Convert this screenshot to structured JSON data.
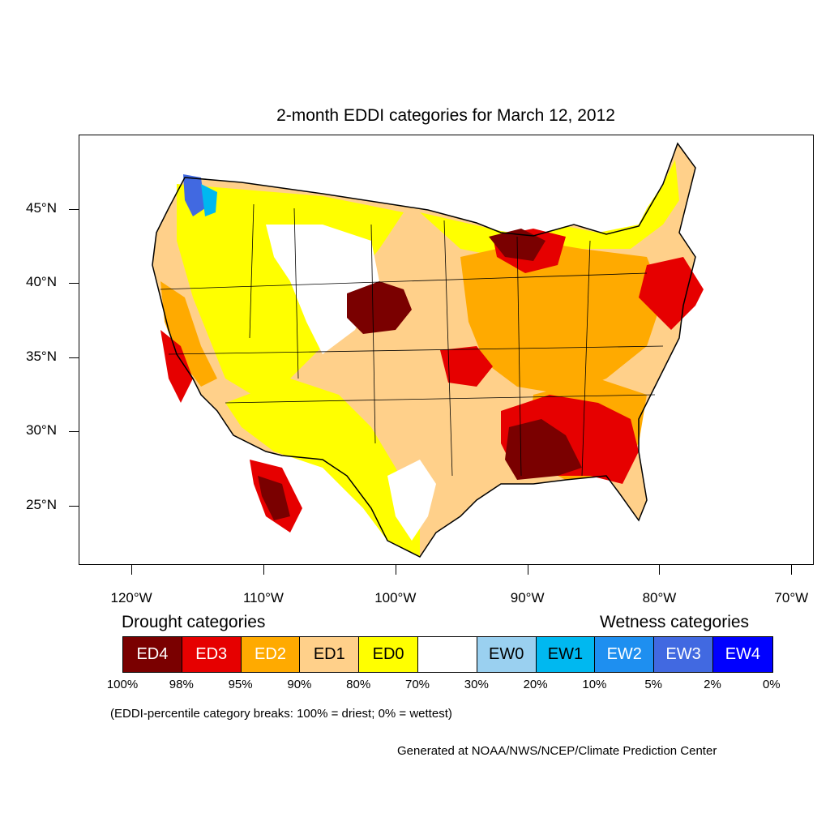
{
  "title": "2-month EDDI categories for March 12, 2012",
  "map": {
    "extent": {
      "lon_min": -124,
      "lon_max": -68.3,
      "lat_min": 21,
      "lat_max": 50
    },
    "lat_labels": [
      {
        "text": "45°N",
        "lat": 45
      },
      {
        "text": "40°N",
        "lat": 40
      },
      {
        "text": "35°N",
        "lat": 35
      },
      {
        "text": "30°N",
        "lat": 30
      },
      {
        "text": "25°N",
        "lat": 25
      }
    ],
    "lon_labels": [
      {
        "text": "120°W",
        "lon": -120
      },
      {
        "text": "110°W",
        "lon": -110
      },
      {
        "text": "100°W",
        "lon": -100
      },
      {
        "text": "90°W",
        "lon": -90
      },
      {
        "text": "80°W",
        "lon": -80
      },
      {
        "text": "70°W",
        "lon": -70
      }
    ]
  },
  "legend": {
    "drought_heading": "Drought categories",
    "wetness_heading": "Wetness categories",
    "categories": [
      {
        "label": "ED4",
        "color": "#7a0000",
        "text_color": "#ffffff"
      },
      {
        "label": "ED3",
        "color": "#e60000",
        "text_color": "#ffffff"
      },
      {
        "label": "ED2",
        "color": "#ffaa00",
        "text_color": "#ffffff"
      },
      {
        "label": "ED1",
        "color": "#ffd08a",
        "text_color": "#000000"
      },
      {
        "label": "ED0",
        "color": "#ffff00",
        "text_color": "#000000"
      },
      {
        "label": "",
        "color": "#ffffff",
        "text_color": "#000000"
      },
      {
        "label": "EW0",
        "color": "#9ad0f0",
        "text_color": "#000000"
      },
      {
        "label": "EW1",
        "color": "#00b8f0",
        "text_color": "#000000"
      },
      {
        "label": "EW2",
        "color": "#1e8ff0",
        "text_color": "#ffffff"
      },
      {
        "label": "EW3",
        "color": "#4169e1",
        "text_color": "#ffffff"
      },
      {
        "label": "EW4",
        "color": "#0000ff",
        "text_color": "#ffffff"
      }
    ],
    "breaks": [
      "100%",
      "98%",
      "95%",
      "90%",
      "80%",
      "70%",
      "30%",
      "20%",
      "10%",
      "5%",
      "2%",
      "0%"
    ]
  },
  "note": "(EDDI-percentile category breaks: 100% = driest; 0% = wettest)",
  "credit": "Generated at NOAA/NWS/NCEP/Climate Prediction Center"
}
